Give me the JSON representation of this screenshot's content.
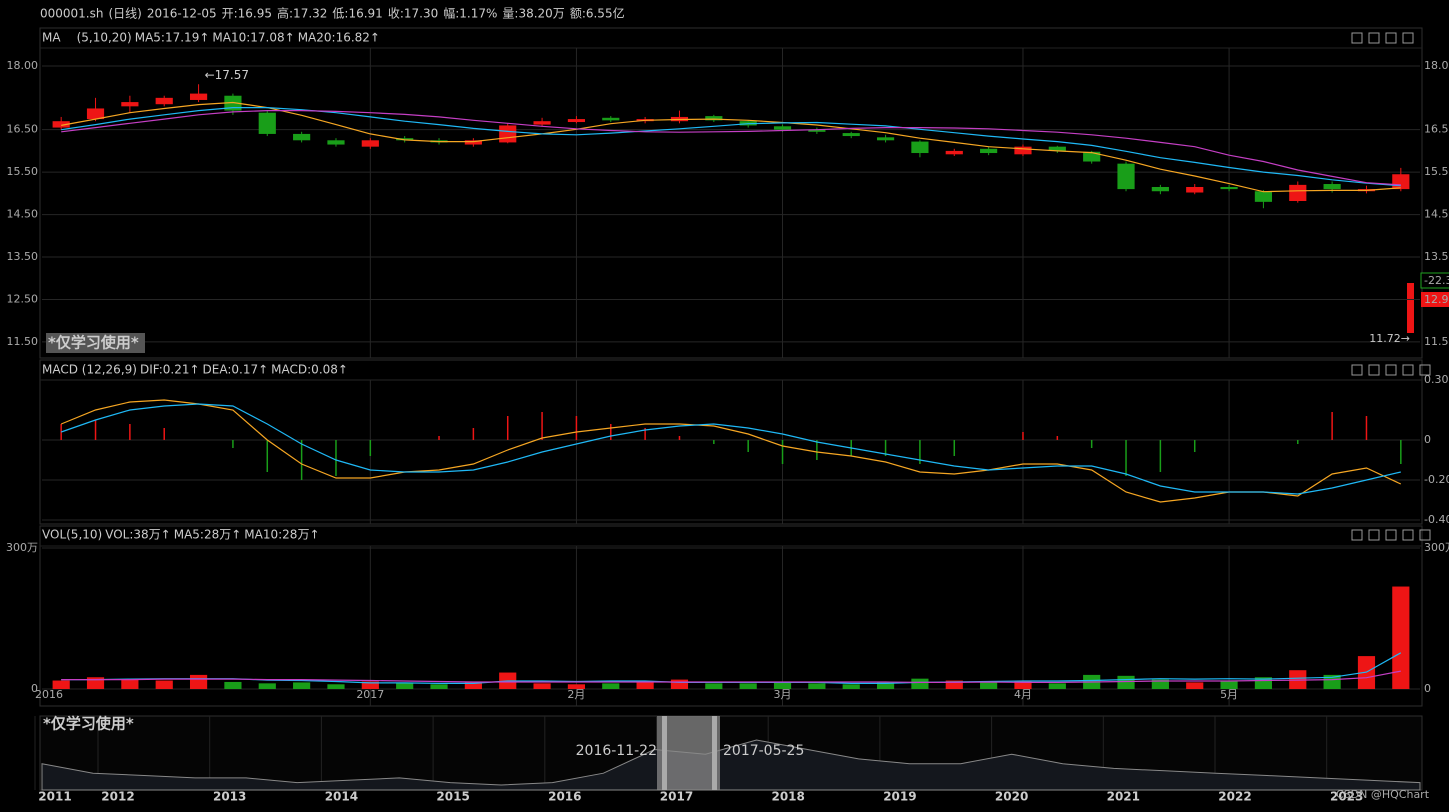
{
  "info": [
    {
      "text": "000001.sh",
      "color": "#dddddd"
    },
    {
      "text": "(日线)",
      "color": "#dddddd"
    },
    {
      "text": "2016-12-05",
      "color": "#dddddd"
    },
    {
      "text": "开:16.95",
      "color": "#1fa31f"
    },
    {
      "text": "高:17.32",
      "color": "#ee2222"
    },
    {
      "text": "低:16.91",
      "color": "#1fa31f"
    },
    {
      "text": "收:17.30",
      "color": "#ee2222"
    },
    {
      "text": "幅:1.17%",
      "color": "#ee2222"
    },
    {
      "text": "量:38.20万",
      "color": "#dddddd"
    },
    {
      "text": "额:6.55亿",
      "color": "#dddddd"
    }
  ],
  "chart_data": [
    {
      "type": "candlestick",
      "left_axis": true,
      "up_color": "#ee1515",
      "down_color": "#199e19",
      "legend": [
        {
          "text": "MA",
          "color": "#dddddd"
        },
        {
          "text": "(5,10,20)",
          "color": "#dddddd"
        },
        {
          "text": "MA5:17.19↑",
          "color": "#f5a623"
        },
        {
          "text": "MA10:17.08↑",
          "color": "#1fb8f5"
        },
        {
          "text": "MA20:16.82↑",
          "color": "#c43fc4"
        }
      ],
      "categories": [
        "2016",
        null,
        null,
        null,
        null,
        null,
        null,
        null,
        null,
        "2017",
        null,
        null,
        null,
        null,
        null,
        "2月",
        null,
        null,
        null,
        null,
        null,
        "3月",
        null,
        null,
        null,
        null,
        null,
        null,
        "4月",
        null,
        null,
        null,
        null,
        null,
        "5月",
        null,
        null,
        null,
        null,
        null
      ],
      "open": [
        16.55,
        16.75,
        17.05,
        17.1,
        17.2,
        17.3,
        16.9,
        16.4,
        16.25,
        16.1,
        16.3,
        16.25,
        16.15,
        16.2,
        16.62,
        16.68,
        16.78,
        16.7,
        16.7,
        16.82,
        16.7,
        16.58,
        16.5,
        16.42,
        16.32,
        16.22,
        15.92,
        16.05,
        15.92,
        16.1,
        15.98,
        15.7,
        15.15,
        15.02,
        15.15,
        15.05,
        14.82,
        15.22,
        15.05,
        15.1
      ],
      "high": [
        16.8,
        17.25,
        17.3,
        17.3,
        17.57,
        17.35,
        16.95,
        16.45,
        16.3,
        16.3,
        16.35,
        16.3,
        16.3,
        16.65,
        16.78,
        16.82,
        16.82,
        16.8,
        16.95,
        16.85,
        16.72,
        16.62,
        16.55,
        16.45,
        16.38,
        16.25,
        16.05,
        16.1,
        16.15,
        16.12,
        16.0,
        15.75,
        15.2,
        15.22,
        15.2,
        15.08,
        15.28,
        15.28,
        15.18,
        15.6
      ],
      "low": [
        16.5,
        16.7,
        16.9,
        17.05,
        17.15,
        16.85,
        16.35,
        16.2,
        16.1,
        16.05,
        16.2,
        16.15,
        16.1,
        16.18,
        16.58,
        16.65,
        16.68,
        16.65,
        16.65,
        16.68,
        16.55,
        16.45,
        16.4,
        16.3,
        16.2,
        15.85,
        15.88,
        15.9,
        15.88,
        15.95,
        15.7,
        15.05,
        14.98,
        14.98,
        15.05,
        14.65,
        14.78,
        15.02,
        15.0,
        15.05
      ],
      "close": [
        16.7,
        17.0,
        17.15,
        17.25,
        17.35,
        16.95,
        16.4,
        16.25,
        16.15,
        16.25,
        16.25,
        16.2,
        16.25,
        16.6,
        16.7,
        16.75,
        16.72,
        16.75,
        16.8,
        16.72,
        16.6,
        16.5,
        16.45,
        16.35,
        16.25,
        15.95,
        16.0,
        15.95,
        16.1,
        16.0,
        15.75,
        15.1,
        15.05,
        15.15,
        15.1,
        14.8,
        15.2,
        15.1,
        15.1,
        15.45
      ],
      "series": [
        {
          "color": "#f5a623",
          "values": [
            16.6,
            16.75,
            16.9,
            17.0,
            17.09,
            17.14,
            17.02,
            16.84,
            16.62,
            16.4,
            16.26,
            16.22,
            16.22,
            16.31,
            16.4,
            16.51,
            16.64,
            16.72,
            16.74,
            16.75,
            16.72,
            16.67,
            16.61,
            16.52,
            16.43,
            16.3,
            16.2,
            16.1,
            16.05,
            16.0,
            15.96,
            15.78,
            15.57,
            15.41,
            15.23,
            15.04,
            15.06,
            15.07,
            15.07,
            15.13
          ]
        },
        {
          "color": "#1fb8f5",
          "values": [
            16.5,
            16.62,
            16.75,
            16.85,
            16.95,
            17.02,
            17.02,
            16.97,
            16.9,
            16.8,
            16.7,
            16.62,
            16.53,
            16.46,
            16.4,
            16.38,
            16.42,
            16.47,
            16.52,
            16.58,
            16.64,
            16.66,
            16.67,
            16.63,
            16.59,
            16.51,
            16.43,
            16.35,
            16.28,
            16.22,
            16.13,
            15.99,
            15.84,
            15.73,
            15.61,
            15.5,
            15.42,
            15.32,
            15.24,
            15.18
          ]
        },
        {
          "color": "#c43fc4",
          "values": [
            16.45,
            16.55,
            16.65,
            16.75,
            16.85,
            16.92,
            16.95,
            16.95,
            16.93,
            16.9,
            16.86,
            16.8,
            16.72,
            16.65,
            16.58,
            16.52,
            16.48,
            16.45,
            16.44,
            16.45,
            16.46,
            16.48,
            16.5,
            16.53,
            16.55,
            16.55,
            16.54,
            16.52,
            16.48,
            16.44,
            16.38,
            16.3,
            16.2,
            16.1,
            15.9,
            15.75,
            15.55,
            15.4,
            15.25,
            15.2
          ]
        }
      ],
      "ylim": [
        11.31,
        18.33
      ],
      "yticks": [
        {
          "value": 18,
          "label": "18.00"
        },
        {
          "value": 16.5,
          "label": "16.50"
        },
        {
          "value": 15.5,
          "label": "15.50"
        },
        {
          "value": 14.5,
          "label": "14.50"
        },
        {
          "value": 13.5,
          "label": "13.50"
        },
        {
          "value": 12.5,
          "label": "12.50"
        },
        {
          "value": 11.5,
          "label": "11.50"
        }
      ],
      "annotations": [
        "←17.57",
        "11.72→"
      ],
      "watermark": "*仅学习使用*",
      "side_labels": [
        "-22.3",
        "12.9"
      ]
    },
    {
      "type": "macd",
      "left_axis": false,
      "up_color": "#ee1515",
      "down_color": "#199e19",
      "legend": [
        {
          "text": "MACD (12,26,9)",
          "color": "#dddddd"
        },
        {
          "text": "DIF:0.21↑",
          "color": "#f5a623"
        },
        {
          "text": "DEA:0.17↑",
          "color": "#1fb8f5"
        },
        {
          "text": "MACD:0.08↑",
          "color": "#c43fc4"
        }
      ],
      "values": [
        0.08,
        0.1,
        0.08,
        0.06,
        0,
        -0.04,
        -0.16,
        -0.2,
        -0.18,
        -0.08,
        0,
        0.02,
        0.06,
        0.12,
        0.14,
        0.12,
        0.08,
        0.06,
        0.02,
        -0.02,
        -0.06,
        -0.12,
        -0.1,
        -0.08,
        -0.08,
        -0.12,
        -0.08,
        0,
        0.04,
        0.02,
        -0.04,
        -0.18,
        -0.16,
        -0.06,
        0,
        0,
        -0.02,
        0.14,
        0.12,
        -0.12
      ],
      "series": [
        {
          "color": "#f5a623",
          "values": [
            0.08,
            0.15,
            0.19,
            0.2,
            0.18,
            0.15,
            0.0,
            -0.12,
            -0.19,
            -0.19,
            -0.16,
            -0.15,
            -0.12,
            -0.05,
            0.01,
            0.04,
            0.06,
            0.08,
            0.08,
            0.07,
            0.03,
            -0.03,
            -0.06,
            -0.08,
            -0.11,
            -0.16,
            -0.17,
            -0.15,
            -0.12,
            -0.12,
            -0.15,
            -0.26,
            -0.31,
            -0.29,
            -0.26,
            -0.26,
            -0.28,
            -0.17,
            -0.14,
            -0.22
          ]
        },
        {
          "color": "#1fb8f5",
          "values": [
            0.04,
            0.1,
            0.15,
            0.17,
            0.18,
            0.17,
            0.08,
            -0.02,
            -0.1,
            -0.15,
            -0.16,
            -0.16,
            -0.15,
            -0.11,
            -0.06,
            -0.02,
            0.02,
            0.05,
            0.07,
            0.08,
            0.06,
            0.03,
            -0.01,
            -0.04,
            -0.07,
            -0.1,
            -0.13,
            -0.15,
            -0.14,
            -0.13,
            -0.13,
            -0.17,
            -0.23,
            -0.26,
            -0.26,
            -0.26,
            -0.27,
            -0.24,
            -0.2,
            -0.16
          ]
        }
      ],
      "ylim": [
        -0.4,
        0.31
      ],
      "yticks": [
        {
          "value": 0.3,
          "label": "0.30"
        },
        0,
        {
          "value": -0.2,
          "label": "-0.20"
        },
        {
          "value": -0.4,
          "label": "-0.40"
        }
      ]
    },
    {
      "type": "volume",
      "left_axis": true,
      "legend": [
        {
          "text": "VOL(5,10)",
          "color": "#dddddd"
        },
        {
          "text": "VOL:38万↑",
          "color": "#f5a623"
        },
        {
          "text": "MA5:28万↑",
          "color": "#1fb8f5"
        },
        {
          "text": "MA10:28万↑",
          "color": "#c43fc4"
        }
      ],
      "values": [
        18,
        25,
        20,
        18,
        30,
        15,
        12,
        14,
        10,
        16,
        12,
        10,
        14,
        35,
        12,
        10,
        12,
        14,
        20,
        12,
        12,
        14,
        12,
        10,
        14,
        22,
        18,
        14,
        16,
        12,
        30,
        28,
        20,
        14,
        16,
        25,
        40,
        30,
        70,
        218
      ],
      "series": [
        {
          "color": "#1fb8f5",
          "values": [
            20,
            20,
            21,
            22,
            22,
            22,
            19,
            18,
            16,
            13,
            13,
            12,
            12,
            17,
            17,
            16,
            17,
            17,
            14,
            14,
            14,
            14,
            14,
            12,
            12,
            14,
            15,
            16,
            17,
            17,
            18,
            20,
            22,
            21,
            22,
            21,
            23,
            25,
            36,
            77
          ]
        },
        {
          "color": "#c43fc4",
          "values": [
            20,
            20,
            20,
            21,
            21,
            21,
            20,
            20,
            19,
            18,
            17,
            16,
            15,
            15,
            15,
            15,
            15,
            15,
            15,
            15,
            15,
            15,
            15,
            15,
            15,
            14,
            14,
            15,
            14,
            14,
            15,
            16,
            17,
            17,
            17,
            18,
            19,
            20,
            24,
            38
          ]
        }
      ],
      "ylim": [
        0,
        300
      ],
      "yticks": [
        {
          "value": 300,
          "label": "300万"
        },
        0
      ]
    }
  ],
  "navigator": {
    "watermark": "*仅学习使用*",
    "years": [
      "2011",
      "2012",
      "2013",
      "2014",
      "2015",
      "2016",
      "2017",
      "2018",
      "2019",
      "2020",
      "2021",
      "2022",
      "2023"
    ],
    "values": [
      11,
      9,
      8.5,
      8,
      8,
      7,
      7.5,
      8,
      7,
      6.5,
      7,
      9,
      14,
      13,
      16,
      14,
      12,
      11,
      11,
      13,
      11,
      10,
      9.5,
      9,
      8.5,
      8,
      7.5,
      7
    ],
    "range": [
      "2016-11-22",
      "2017-05-25"
    ]
  },
  "credit": "CSDN @HQChart"
}
